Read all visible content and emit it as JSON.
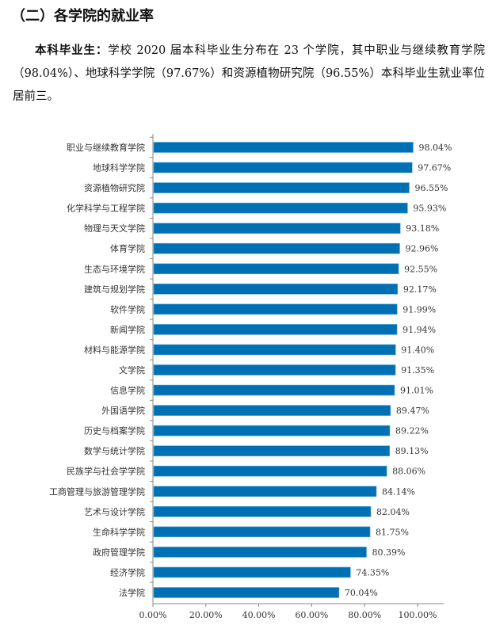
{
  "heading": "（二）各学院的就业率",
  "paragraph": {
    "lead": "本科毕业生：",
    "body": "学校 2020 届本科毕业生分布在 23 个学院，其中职业与继续教育学院（98.04%）、地球科学学院（97.67%）和资源植物研究院（96.55%）本科毕业生就业率位居前三。"
  },
  "chart_data": {
    "type": "bar",
    "orientation": "horizontal",
    "categories": [
      "职业与继续教育学院",
      "地球科学学院",
      "资源植物研究院",
      "化学科学与工程学院",
      "物理与天文学院",
      "体育学院",
      "生态与环境学院",
      "建筑与规划学院",
      "软件学院",
      "新闻学院",
      "材料与能源学院",
      "文学院",
      "信息学院",
      "外国语学院",
      "历史与档案学院",
      "数学与统计学院",
      "民族学与社会学学院",
      "工商管理与旅游管理学院",
      "艺术与设计学院",
      "生命科学学院",
      "政府管理学院",
      "经济学院",
      "法学院"
    ],
    "values": [
      98.04,
      97.67,
      96.55,
      95.93,
      93.18,
      92.96,
      92.55,
      92.17,
      91.99,
      91.94,
      91.4,
      91.35,
      91.01,
      89.47,
      89.22,
      89.13,
      88.06,
      84.14,
      82.04,
      81.75,
      80.39,
      74.35,
      70.04
    ],
    "data_labels": [
      "98.04%",
      "97.67%",
      "96.55%",
      "95.93%",
      "93.18%",
      "92.96%",
      "92.55%",
      "92.17%",
      "91.99%",
      "91.94%",
      "91.40%",
      "91.35%",
      "91.01%",
      "89.47%",
      "89.22%",
      "89.13%",
      "88.06%",
      "84.14%",
      "82.04%",
      "81.75%",
      "80.39%",
      "74.35%",
      "70.04%"
    ],
    "x_ticks": [
      "0.00%",
      "20.00%",
      "40.00%",
      "60.00%",
      "80.00%",
      "100.00%"
    ],
    "xlim": [
      0,
      110
    ],
    "grid": false,
    "bar_color": "#0070b4"
  }
}
